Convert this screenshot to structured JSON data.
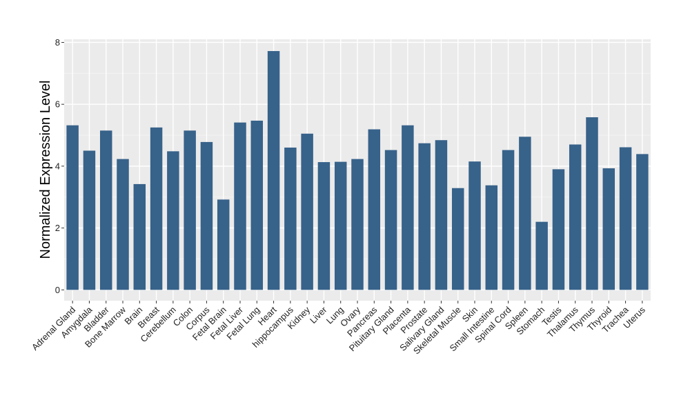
{
  "chart_data": {
    "type": "bar",
    "title": "",
    "xlabel": "",
    "ylabel": "Normalized Expression Level",
    "ylim": [
      -0.35,
      8.1
    ],
    "yticks": [
      0,
      2,
      4,
      6,
      8
    ],
    "grid": true,
    "legend": "none",
    "colors": {
      "bar": "#37628a",
      "panel": "#ebebeb",
      "grid_major": "#ffffff",
      "grid_minor": "#f5f5f5"
    },
    "categories": [
      "Adrenal Gland",
      "Amygdala",
      "Bladder",
      "Bone Marrow",
      "Brain",
      "Breast",
      "Cerebellum",
      "Colon",
      "Corpus",
      "Fetal Brain",
      "Fetal Liver",
      "Fetal Lung",
      "Heart",
      "hippocampus",
      "Kidney",
      "Liver",
      "Lung",
      "Ovary",
      "Pancreas",
      "Pituitary Gland",
      "Placenta",
      "Prostate",
      "Salivary Gland",
      "Skeletal Muscle",
      "Skin",
      "Small Intestine",
      "Spinal Cord",
      "Spleen",
      "Stomach",
      "Testis",
      "Thalamus",
      "Thymus",
      "Thyroid",
      "Trachea",
      "Uterus"
    ],
    "values": [
      5.32,
      4.5,
      5.15,
      4.23,
      3.42,
      5.25,
      4.48,
      5.15,
      4.78,
      2.92,
      5.41,
      5.47,
      7.72,
      4.6,
      5.05,
      4.13,
      4.14,
      4.23,
      5.19,
      4.52,
      5.32,
      4.74,
      4.84,
      3.29,
      4.15,
      3.38,
      4.52,
      4.95,
      2.2,
      3.9,
      4.7,
      5.58,
      3.93,
      4.61,
      4.39
    ]
  }
}
